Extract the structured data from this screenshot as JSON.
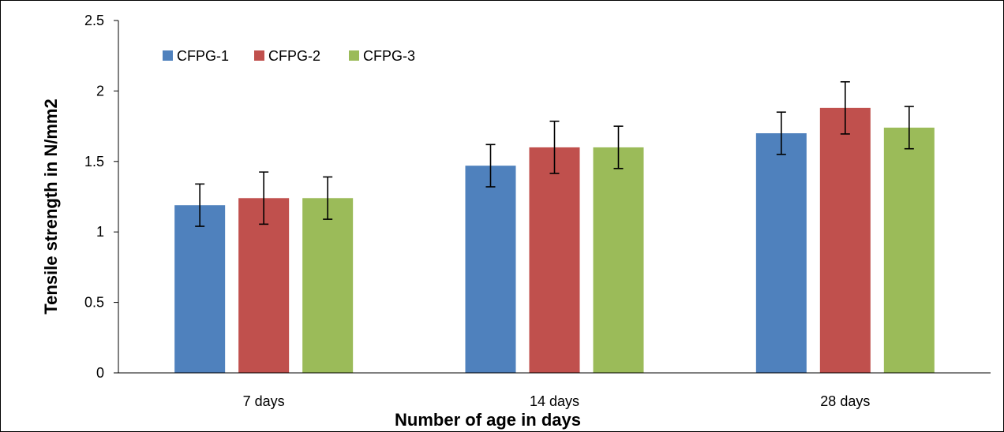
{
  "chart_data": {
    "type": "bar",
    "title": "",
    "xlabel": "Number of age in days",
    "ylabel": "Tensile strength in N/mm2",
    "categories": [
      "7 days",
      "14 days",
      "28 days"
    ],
    "ylim": [
      0,
      2.5
    ],
    "yticks": [
      "0",
      "0.5",
      "1",
      "1.5",
      "2",
      "2.5"
    ],
    "ytick_values": [
      0,
      0.5,
      1,
      1.5,
      2,
      2.5
    ],
    "grid": false,
    "legend_position": "top-left",
    "series": [
      {
        "name": "CFPG-1",
        "color": "#4F81BD",
        "values": [
          1.19,
          1.47,
          1.7
        ],
        "error": [
          0.15,
          0.15,
          0.15
        ]
      },
      {
        "name": "CFPG-2",
        "color": "#C0504D",
        "values": [
          1.24,
          1.6,
          1.88
        ],
        "error": [
          0.185,
          0.185,
          0.185
        ]
      },
      {
        "name": "CFPG-3",
        "color": "#9BBB59",
        "values": [
          1.24,
          1.6,
          1.74
        ],
        "error": [
          0.15,
          0.15,
          0.15
        ]
      }
    ]
  }
}
